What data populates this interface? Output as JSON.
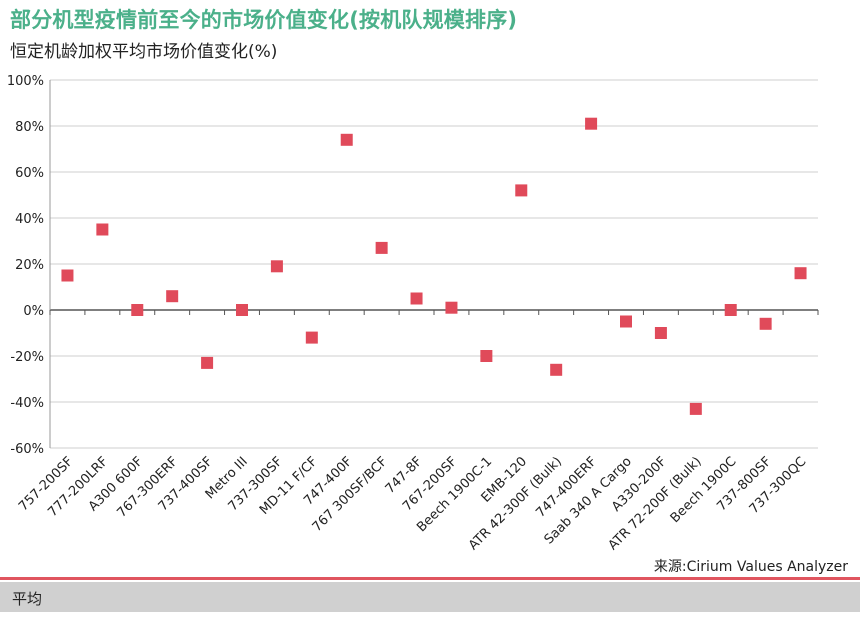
{
  "header": {
    "title": "部分机型疫情前至今的市场价值变化(按机队规模排序)",
    "subtitle": "恒定机龄加权平均市场价值变化(%)"
  },
  "footer": {
    "source": "来源:Cirium Values Analyzer",
    "bar_label": "平均"
  },
  "colors": {
    "title": "#4bb08a",
    "marker": "#e04a5a",
    "accent_line": "#e0555f",
    "footer_bar": "#d0d0d0"
  },
  "chart_data": {
    "type": "scatter",
    "categories": [
      "757-200SF",
      "777-200LRF",
      "A300 600F",
      "767-300ERF",
      "737-400SF",
      "Metro III",
      "737-300SF",
      "MD-11 F/CF",
      "747-400F",
      "767 300SF/BCF",
      "747-8F",
      "767-200SF",
      "Beech 1900C-1",
      "EMB-120",
      "ATR 42-300F (Bulk)",
      "747-400ERF",
      "Saab 340 A Cargo",
      "A330-200F",
      "ATR 72-200F (Bulk)",
      "Beech 1900C",
      "737-800SF",
      "737-300QC"
    ],
    "values": [
      15,
      35,
      0,
      6,
      -23,
      0,
      19,
      -12,
      74,
      27,
      5,
      1,
      -20,
      52,
      -26,
      81,
      -5,
      -10,
      -43,
      0,
      -6,
      16
    ],
    "ylim": [
      -60,
      100
    ],
    "yticks": [
      100,
      80,
      60,
      40,
      20,
      0,
      -20,
      -40,
      -60
    ],
    "ytick_labels": [
      "100%",
      "80%",
      "60%",
      "40%",
      "20%",
      "0%",
      "-20%",
      "-40%",
      "-60%"
    ],
    "grid": true
  }
}
